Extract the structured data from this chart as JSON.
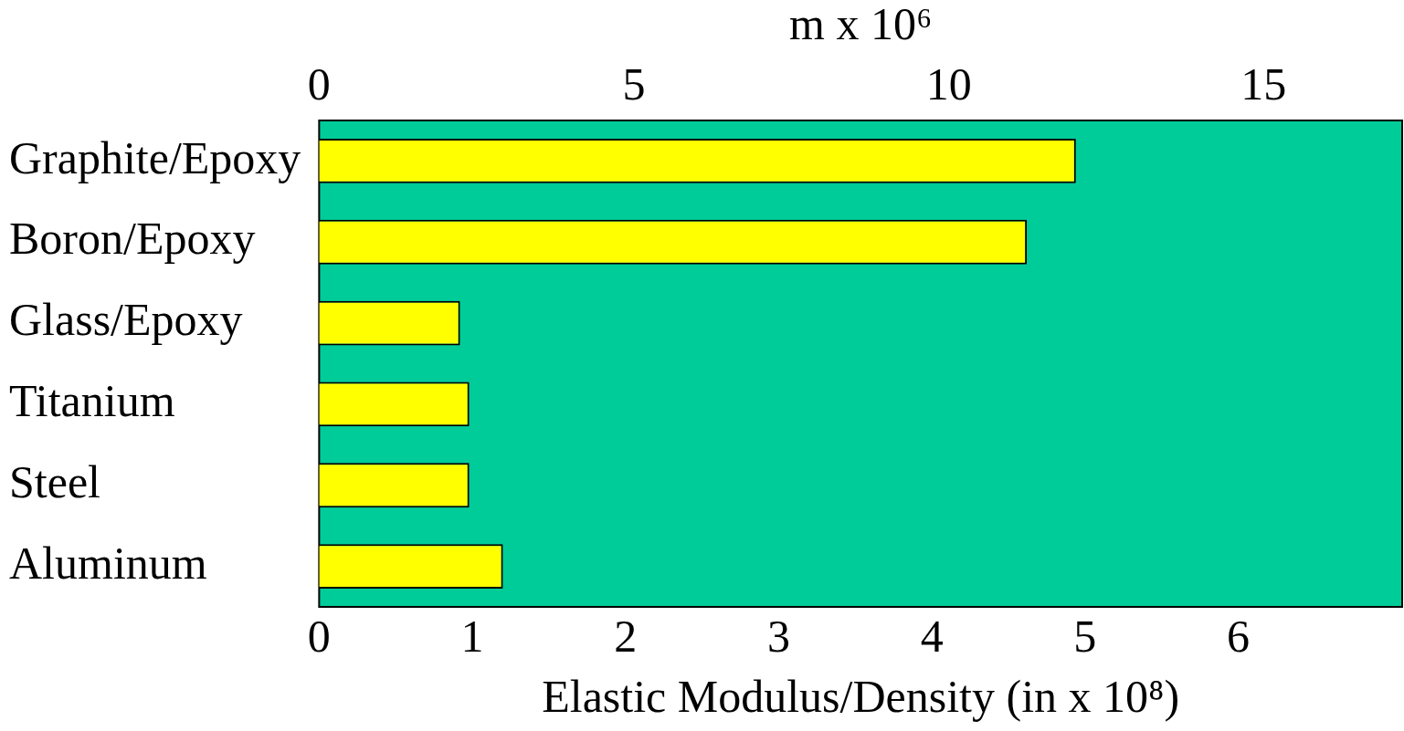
{
  "chart_data": {
    "type": "bar",
    "orientation": "horizontal",
    "categories": [
      "Graphite/Epoxy",
      "Boron/Epoxy",
      "Glass/Epoxy",
      "Titanium",
      "Steel",
      "Aluminum"
    ],
    "values": [
      4.94,
      4.62,
      0.92,
      0.98,
      0.98,
      1.2
    ],
    "color": "#ffff00",
    "xlabel": "Elastic Modulus/Density (in x 10⁸)",
    "x2label": "m x 10⁶",
    "xlim": [
      0,
      7.07
    ],
    "xticks": [
      0,
      1,
      2,
      3,
      4,
      5,
      6
    ],
    "x2lim": [
      0,
      17.2
    ],
    "x2ticks": [
      0,
      5,
      10,
      15
    ],
    "grid": false,
    "legend": false
  }
}
